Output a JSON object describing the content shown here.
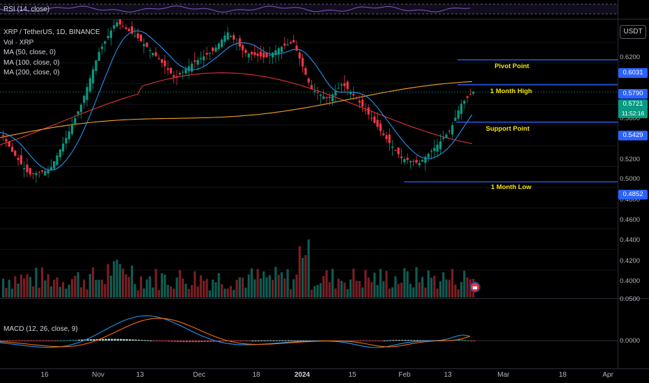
{
  "rsi": {
    "title": "RSI (14, close)"
  },
  "legend": {
    "symbol": "XRP / TetherUS, 1D, BINANCE",
    "volume": "Vol · XRP",
    "ma50": "MA (50, close, 0)",
    "ma100": "MA (100, close, 0)",
    "ma200": "MA (200, close, 0)"
  },
  "macd": {
    "title": "MACD (12, 26, close, 9)",
    "zero_label": "0.0000",
    "top_label": "0.0500"
  },
  "price_axis": {
    "currency": "USDT",
    "ticks": [
      "0.6200",
      "0.5600",
      "0.5400",
      "0.5200",
      "0.5000",
      "0.4800",
      "0.4600",
      "0.4400",
      "0.4200",
      "0.4000"
    ],
    "badges": {
      "pivot": "0.6031",
      "month_high": "0.5790",
      "last_price": "0.5721",
      "last_time": "11:52:16",
      "support": "0.5429",
      "month_low": "0.4852"
    }
  },
  "annotations": {
    "pivot": "Pivot Point",
    "month_high": "1 Month High",
    "support": "Support Point",
    "month_low": "1 Month Low"
  },
  "time_axis": [
    "16",
    "Nov",
    "13",
    "Dec",
    "18",
    "2024",
    "15",
    "Feb",
    "13",
    "Mar",
    "18",
    "Apr"
  ],
  "colors": {
    "up": "#089981",
    "down": "#f23645",
    "ma50": "#2196f3",
    "ma100": "#f5a524",
    "ma200": "#e0333c",
    "level": "#2962ff",
    "annotation": "#f5e500",
    "macd": "#2196f3",
    "signal": "#ff6d00"
  },
  "chart_data": {
    "type": "candlestick",
    "title": "XRP / TetherUS, 1D, BINANCE",
    "ylim": [
      0.45,
      0.63
    ],
    "levels": [
      {
        "name": "Pivot Point",
        "value": 0.6031
      },
      {
        "name": "1 Month High",
        "value": 0.579
      },
      {
        "name": "Support Point",
        "value": 0.5429
      },
      {
        "name": "1 Month Low",
        "value": 0.4852
      }
    ],
    "last_price": 0.5721
  }
}
